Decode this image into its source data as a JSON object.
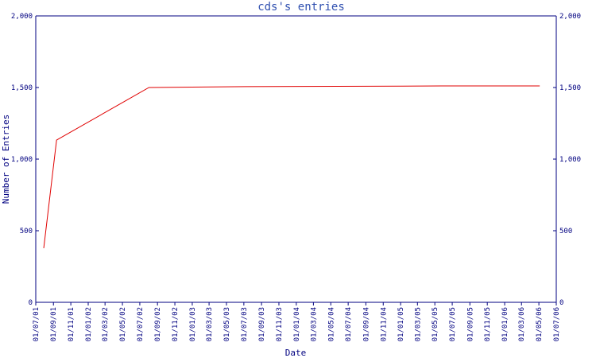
{
  "chart_data": {
    "type": "line",
    "title": "cds's entries",
    "xlabel": "Date",
    "ylabel": "Number of Entries",
    "x": [
      "2001-07-29",
      "2001-09-12",
      "2002-08-02",
      "2003-07-07",
      "2005-05-28",
      "2006-05-04"
    ],
    "values": [
      378,
      1133,
      1500,
      1506,
      1511,
      1511
    ],
    "color": "#e00000",
    "axis_color": "#000080",
    "grid": false,
    "xlim": [
      "2001-07-01",
      "2006-07-01"
    ],
    "xticks": [
      {
        "value": "2001-07-01",
        "label": "01/07/01"
      },
      {
        "value": "2001-09-01",
        "label": "01/09/01"
      },
      {
        "value": "2001-11-01",
        "label": "01/11/01"
      },
      {
        "value": "2002-01-01",
        "label": "01/01/02"
      },
      {
        "value": "2002-03-01",
        "label": "01/03/02"
      },
      {
        "value": "2002-05-01",
        "label": "01/05/02"
      },
      {
        "value": "2002-07-01",
        "label": "01/07/02"
      },
      {
        "value": "2002-09-01",
        "label": "01/09/02"
      },
      {
        "value": "2002-11-01",
        "label": "01/11/02"
      },
      {
        "value": "2003-01-01",
        "label": "01/01/03"
      },
      {
        "value": "2003-03-01",
        "label": "01/03/03"
      },
      {
        "value": "2003-05-01",
        "label": "01/05/03"
      },
      {
        "value": "2003-07-01",
        "label": "01/07/03"
      },
      {
        "value": "2003-09-01",
        "label": "01/09/03"
      },
      {
        "value": "2003-11-01",
        "label": "01/11/03"
      },
      {
        "value": "2004-01-01",
        "label": "01/01/04"
      },
      {
        "value": "2004-03-01",
        "label": "01/03/04"
      },
      {
        "value": "2004-05-01",
        "label": "01/05/04"
      },
      {
        "value": "2004-07-01",
        "label": "01/07/04"
      },
      {
        "value": "2004-09-01",
        "label": "01/09/04"
      },
      {
        "value": "2004-11-01",
        "label": "01/11/04"
      },
      {
        "value": "2005-01-01",
        "label": "01/01/05"
      },
      {
        "value": "2005-03-01",
        "label": "01/03/05"
      },
      {
        "value": "2005-05-01",
        "label": "01/05/05"
      },
      {
        "value": "2005-07-01",
        "label": "01/07/05"
      },
      {
        "value": "2005-09-01",
        "label": "01/09/05"
      },
      {
        "value": "2005-11-01",
        "label": "01/11/05"
      },
      {
        "value": "2006-01-01",
        "label": "01/01/06"
      },
      {
        "value": "2006-03-01",
        "label": "01/03/06"
      },
      {
        "value": "2006-05-01",
        "label": "01/05/06"
      },
      {
        "value": "2006-07-01",
        "label": "01/07/06"
      }
    ],
    "ylim": [
      0,
      2000
    ],
    "yticks": [
      0,
      500,
      {
        "value": 1000,
        "label": "1,000"
      },
      {
        "value": 1500,
        "label": "1,500"
      },
      {
        "value": 2000,
        "label": "2,000"
      }
    ]
  }
}
